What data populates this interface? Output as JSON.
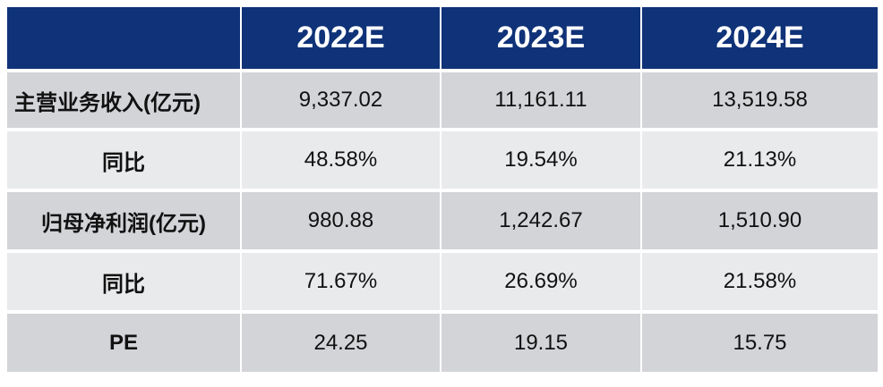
{
  "table": {
    "header": [
      "",
      "2022E",
      "2023E",
      "2024E"
    ],
    "rows": [
      {
        "label": "主营业务收入(亿元)",
        "values": [
          "9,337.02",
          "11,161.11",
          "13,519.58"
        ]
      },
      {
        "label": "同比",
        "values": [
          "48.58%",
          "19.54%",
          "21.13%"
        ]
      },
      {
        "label": "归母净利润(亿元)",
        "values": [
          "980.88",
          "1,242.67",
          "1,510.90"
        ]
      },
      {
        "label": "同比",
        "values": [
          "71.67%",
          "26.69%",
          "21.58%"
        ]
      },
      {
        "label": "PE",
        "values": [
          "24.25",
          "19.15",
          "15.75"
        ]
      }
    ]
  },
  "colors": {
    "header_bg": "#0f3278",
    "row_dark": "#d3d4d8",
    "row_light": "#e9eaec"
  }
}
